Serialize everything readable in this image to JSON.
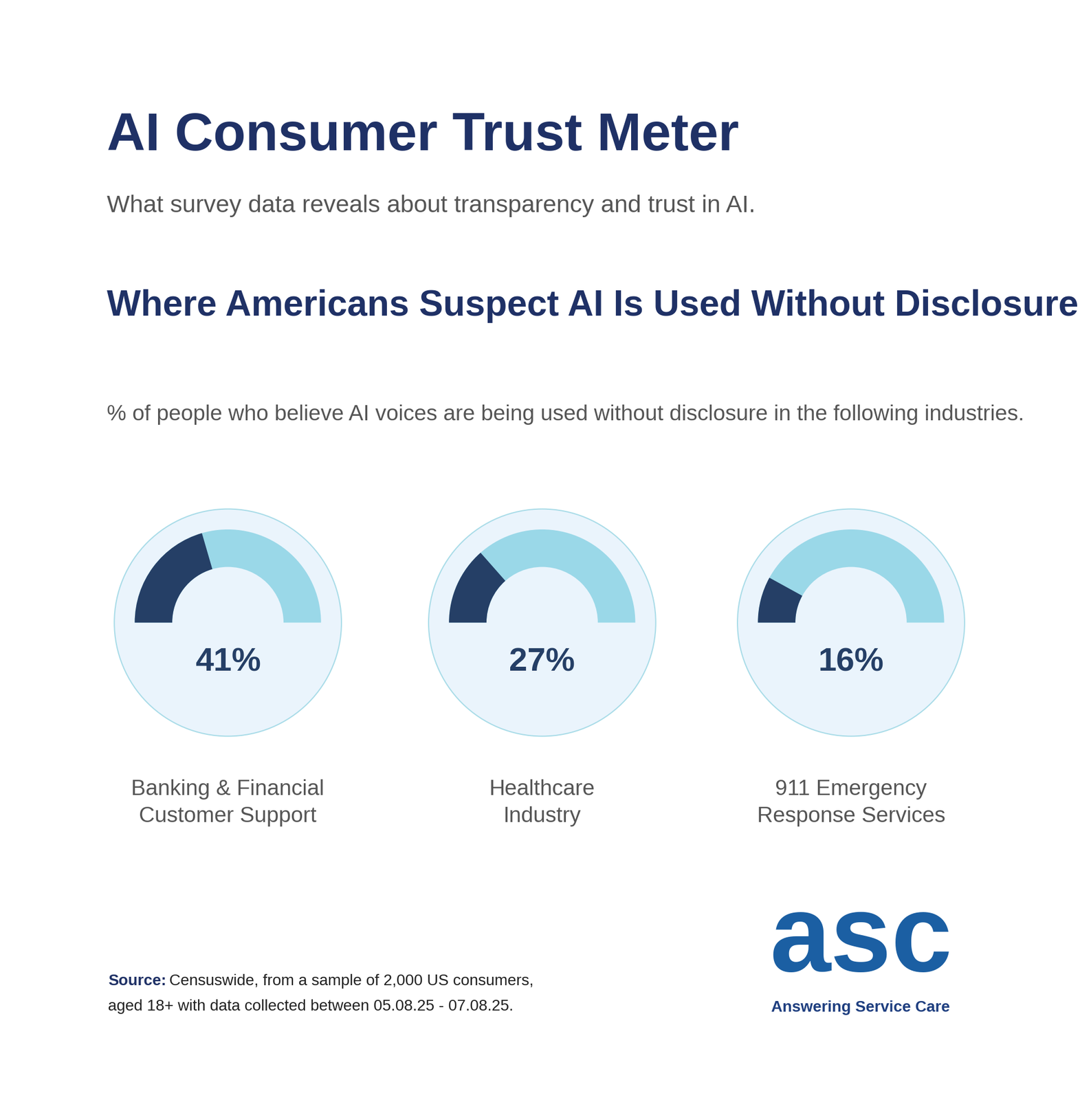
{
  "header": {
    "title": "AI Consumer Trust Meter",
    "subtitle": "What survey data reveals about transparency and trust in AI."
  },
  "chart_data": {
    "type": "gauge",
    "title": "Where Americans Suspect AI Is Used Without Disclosure",
    "subtitle": "% of people who believe AI voices are being used without disclosure in the following industries.",
    "categories": [
      "Banking & Financial\nCustomer Support",
      "Healthcare\nIndustry",
      "911 Emergency\nResponse Services"
    ],
    "values": [
      41,
      27,
      16
    ],
    "value_labels": [
      "41%",
      "27%",
      "16%"
    ],
    "ylim": [
      0,
      100
    ],
    "color": "#253f66",
    "data_labels": true,
    "tick_labels": false
  },
  "footer": {
    "source_label": "Source:",
    "source": "Censuswide, from a sample of 2,000 US consumers,\naged 18+ with data collected between 05.08.25 - 07.08.25.",
    "logo": "asc",
    "brand": "Answering Service Care"
  }
}
